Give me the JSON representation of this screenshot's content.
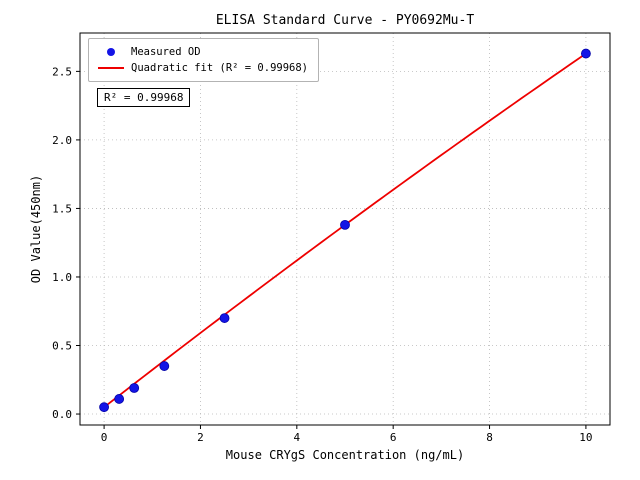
{
  "chart_data": {
    "type": "scatter",
    "title": "ELISA Standard Curve - PY0692Mu-T",
    "xlabel": "Mouse CRYgS Concentration (ng/mL)",
    "ylabel": "OD Value(450nm)",
    "xlim": [
      -0.5,
      10.5
    ],
    "ylim": [
      -0.08,
      2.78
    ],
    "xticks": [
      0,
      2,
      4,
      6,
      8,
      10
    ],
    "yticks": [
      0.0,
      0.5,
      1.0,
      1.5,
      2.0,
      2.5
    ],
    "grid": true,
    "colors": {
      "points": "#1414e6",
      "fit_line": "#ee0000",
      "grid": "#b8b8b8",
      "axes": "#000000"
    },
    "series": [
      {
        "name": "Measured OD",
        "type": "scatter",
        "x": [
          0,
          0.3125,
          0.625,
          1.25,
          2.5,
          5,
          10
        ],
        "y": [
          0.05,
          0.11,
          0.19,
          0.35,
          0.7,
          1.38,
          2.63
        ]
      },
      {
        "name": "Quadratic fit",
        "type": "quadratic",
        "coefficients": {
          "a": -0.0016,
          "b": 0.274,
          "c": 0.05
        },
        "x_range": [
          0,
          10
        ]
      }
    ],
    "legend": {
      "position": "upper-left",
      "entries": [
        {
          "label": "Measured OD",
          "marker": "dot"
        },
        {
          "label": "Quadratic fit (R² = 0.99968)",
          "marker": "line"
        }
      ]
    },
    "annotation": "R² = 0.99968"
  }
}
